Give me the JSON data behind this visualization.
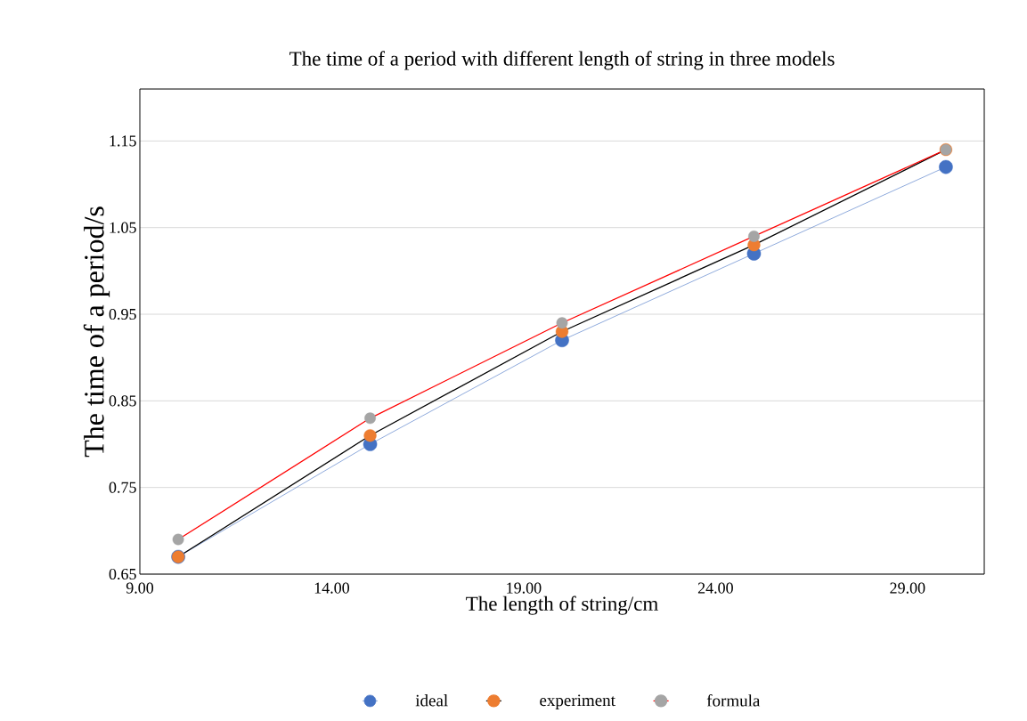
{
  "chart_data": {
    "type": "line",
    "title": "The time of a period with different length of string in three models",
    "xlabel": "The length of string/cm",
    "ylabel": "The time of a period/s",
    "x": [
      10,
      15,
      20,
      25,
      30
    ],
    "series": [
      {
        "name": "ideal",
        "color": "#4472c4",
        "colors": [
          "#4472c4",
          "#4472c4",
          "#4472c4",
          "#4472c4",
          "#4472c4"
        ],
        "values": [
          0.67,
          0.8,
          0.92,
          1.02,
          1.12
        ]
      },
      {
        "name": "experiment",
        "color": "#000000",
        "colors": [
          "#ed7d31",
          "#ed7d31",
          "#ed7d31",
          "#ed7d31",
          "#ed7d31"
        ],
        "values": [
          0.67,
          0.81,
          0.93,
          1.03,
          1.14
        ]
      },
      {
        "name": "formula",
        "color": "#ff0000",
        "colors": [
          "#a5a5a5",
          "#a5a5a5",
          "#a5a5a5",
          "#a5a5a5",
          "#a5a5a5"
        ],
        "values": [
          0.69,
          0.83,
          0.94,
          1.04,
          1.14
        ]
      }
    ],
    "xlim": [
      9,
      31
    ],
    "xticks": [
      {
        "value": 9,
        "label": "9.00"
      },
      {
        "value": 14,
        "label": "14.00"
      },
      {
        "value": 19,
        "label": "19.00"
      },
      {
        "value": 24,
        "label": "24.00"
      },
      {
        "value": 29,
        "label": "29.00"
      }
    ],
    "ylim": [
      0.65,
      1.21
    ],
    "yticks": [
      0.65,
      0.75,
      0.85,
      0.95,
      1.05,
      1.15
    ],
    "grid": "y",
    "legend": "bottom",
    "marker": "circle",
    "line_style": "solid"
  }
}
